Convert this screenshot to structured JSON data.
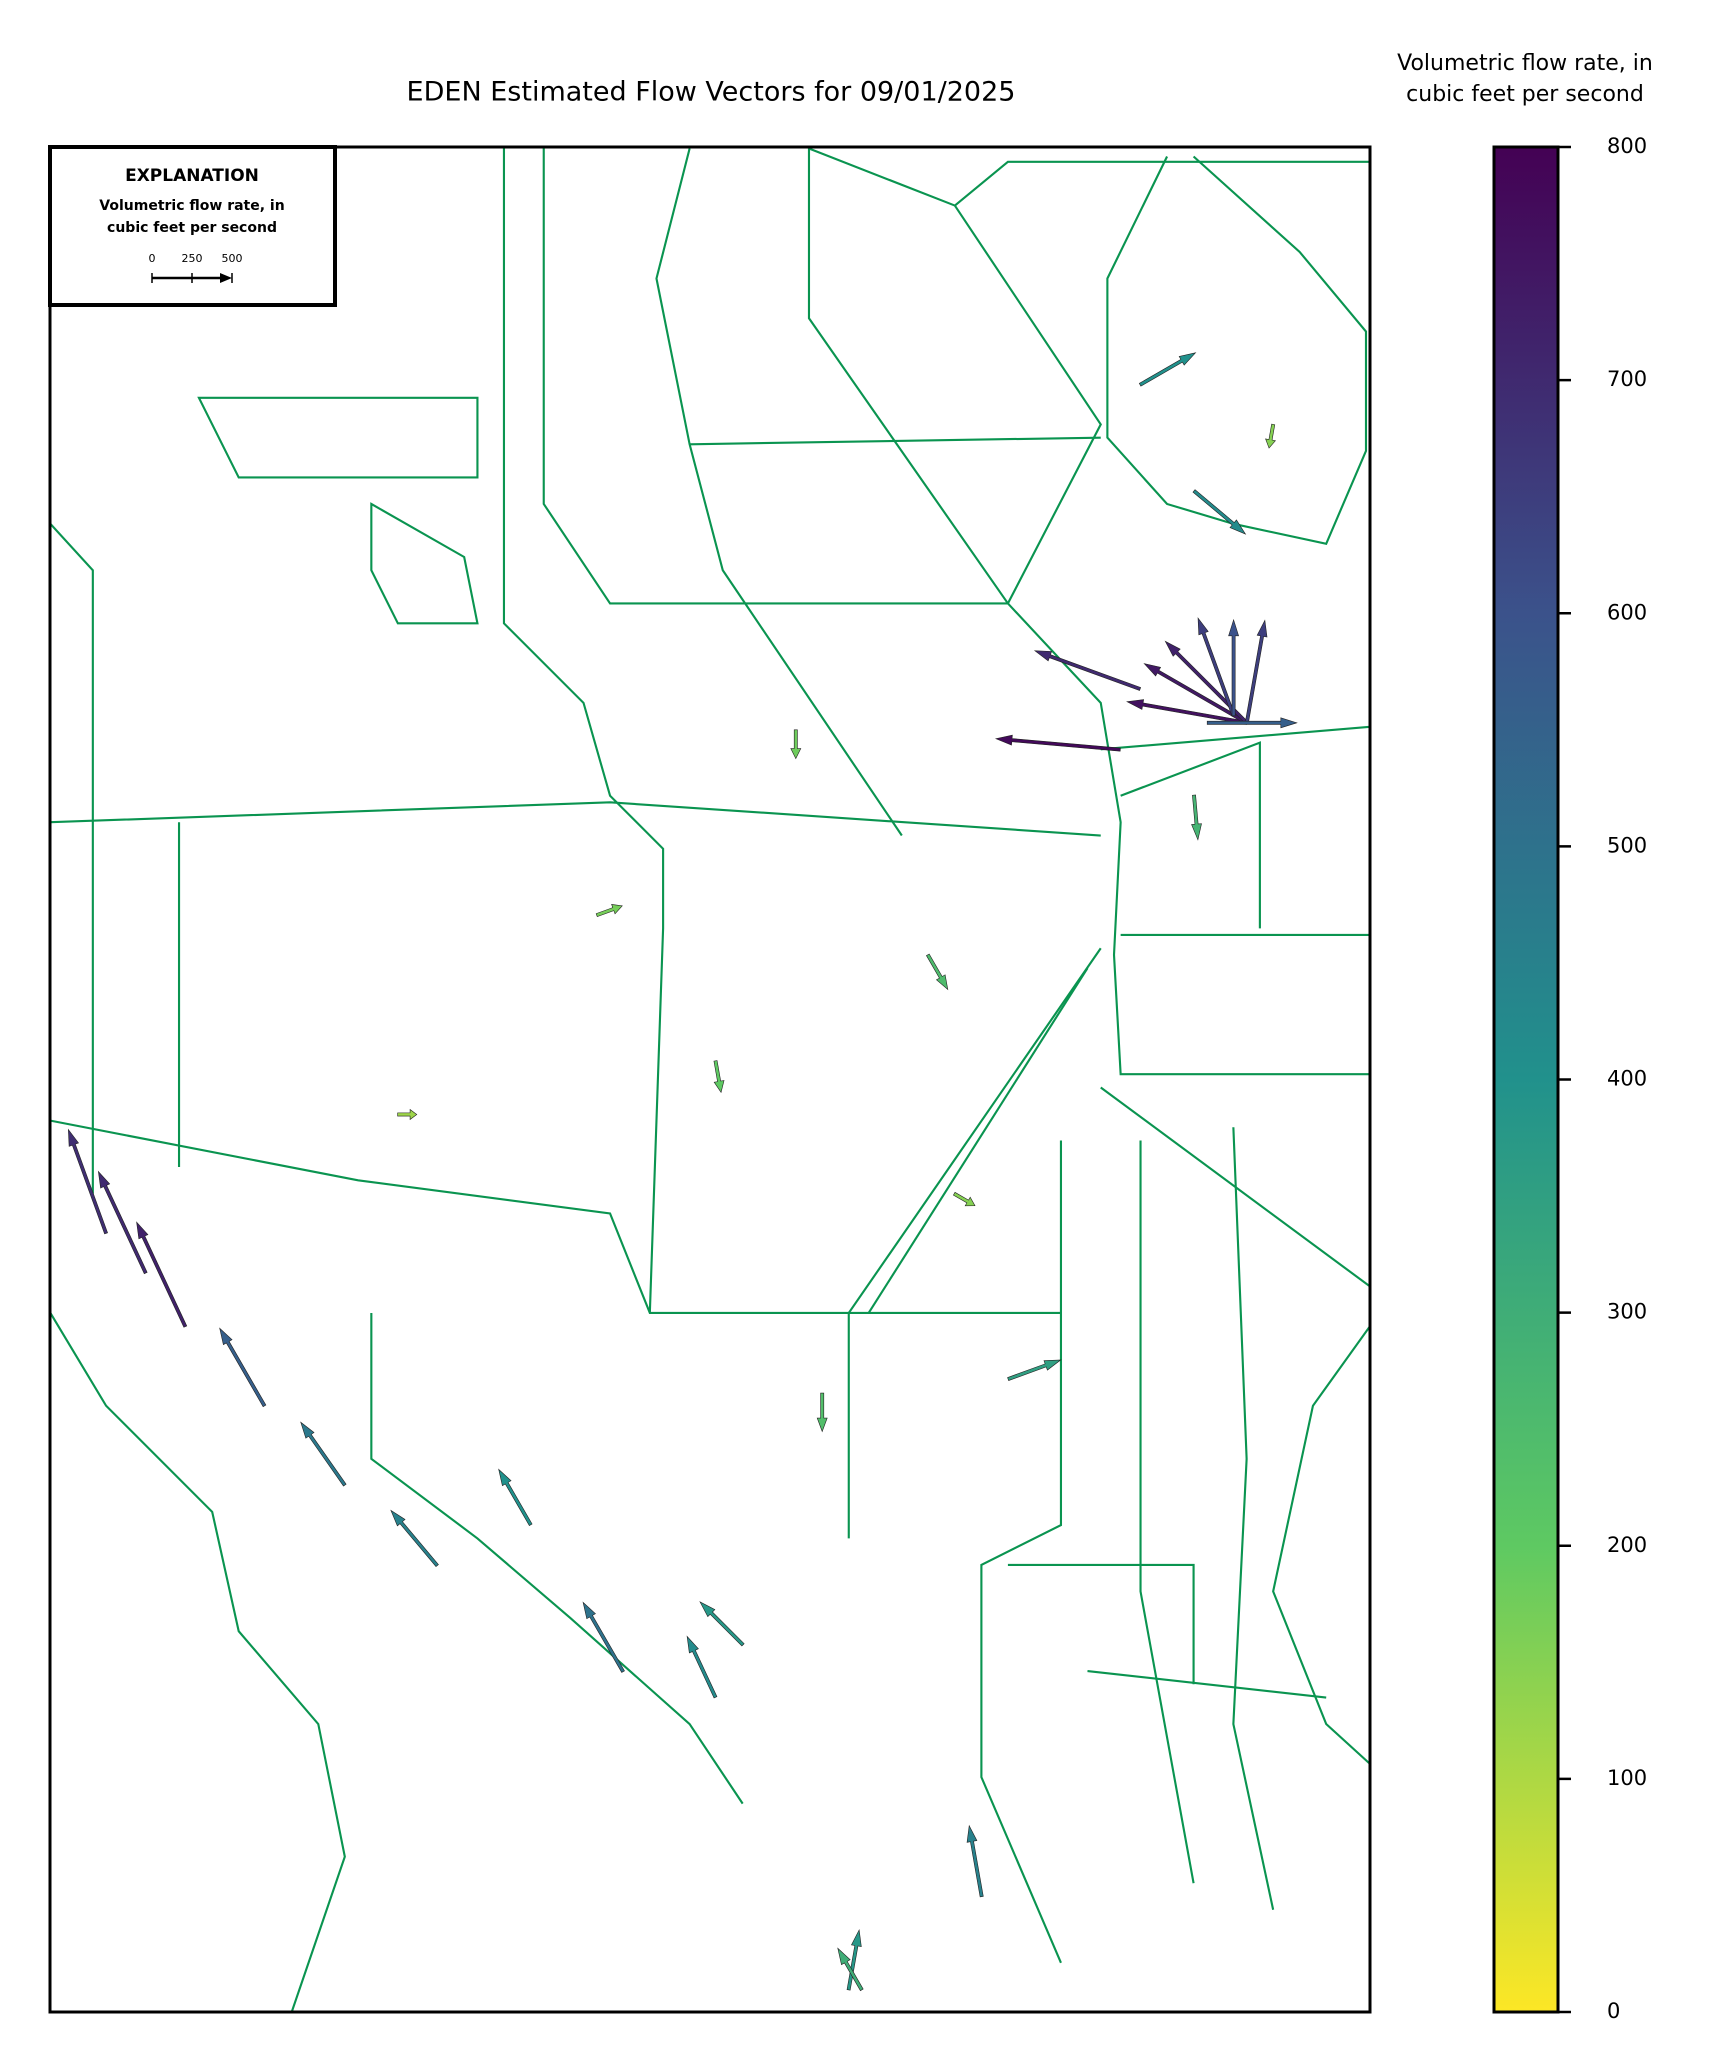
{
  "chart_data": {
    "type": "vector-map",
    "title": "EDEN Estimated Flow Vectors for 09/01/2025",
    "colorbar_label": [
      "Volumetric flow rate, in",
      "cubic feet per second"
    ],
    "clim": [
      0,
      800
    ],
    "cticks": [
      0,
      100,
      200,
      300,
      400,
      500,
      600,
      700,
      800
    ],
    "colormap": "viridis_r",
    "explanation": {
      "title": "EXPLANATION",
      "lines": [
        "Volumetric flow rate, in",
        "cubic feet per second"
      ],
      "key_ticks": [
        0,
        250,
        500
      ]
    },
    "xlim": [
      -81.35,
      -80.15
    ],
    "ylim": [
      25.15,
      26.75
    ],
    "vectors": [
      {
        "lon": -80.262,
        "lat": 26.256,
        "direction": 170,
        "rate": 760
      },
      {
        "lon": -80.262,
        "lat": 26.256,
        "direction": 150,
        "rate": 740
      },
      {
        "lon": -80.262,
        "lat": 26.256,
        "direction": 135,
        "rate": 720
      },
      {
        "lon": -80.274,
        "lat": 26.262,
        "direction": 110,
        "rate": 650
      },
      {
        "lon": -80.274,
        "lat": 26.262,
        "direction": 90,
        "rate": 600
      },
      {
        "lon": -80.262,
        "lat": 26.256,
        "direction": 80,
        "rate": 650
      },
      {
        "lon": -80.298,
        "lat": 26.256,
        "direction": 0,
        "rate": 560
      },
      {
        "lon": -80.377,
        "lat": 26.233,
        "direction": 175,
        "rate": 780
      },
      {
        "lon": -80.359,
        "lat": 26.285,
        "direction": 160,
        "rate": 700
      },
      {
        "lon": -81.227,
        "lat": 25.738,
        "direction": 115,
        "rate": 720
      },
      {
        "lon": -81.263,
        "lat": 25.784,
        "direction": 115,
        "rate": 700
      },
      {
        "lon": -81.299,
        "lat": 25.818,
        "direction": 110,
        "rate": 690
      },
      {
        "lon": -81.155,
        "lat": 25.67,
        "direction": 120,
        "rate": 560
      },
      {
        "lon": -81.082,
        "lat": 25.602,
        "direction": 125,
        "rate": 480
      },
      {
        "lon": -80.998,
        "lat": 25.533,
        "direction": 130,
        "rate": 450
      },
      {
        "lon": -80.913,
        "lat": 25.568,
        "direction": 120,
        "rate": 400
      },
      {
        "lon": -80.829,
        "lat": 25.442,
        "direction": 120,
        "rate": 500
      },
      {
        "lon": -80.745,
        "lat": 25.42,
        "direction": 115,
        "rate": 420
      },
      {
        "lon": -80.72,
        "lat": 25.465,
        "direction": 135,
        "rate": 380
      },
      {
        "lon": -80.624,
        "lat": 25.169,
        "direction": 80,
        "rate": 380
      },
      {
        "lon": -80.612,
        "lat": 25.169,
        "direction": 120,
        "rate": 300
      },
      {
        "lon": -80.503,
        "lat": 25.249,
        "direction": 100,
        "rate": 450
      },
      {
        "lon": -80.359,
        "lat": 26.546,
        "direction": 30,
        "rate": 400
      },
      {
        "lon": -80.31,
        "lat": 26.455,
        "direction": -40,
        "rate": 420
      },
      {
        "lon": -80.672,
        "lat": 26.25,
        "direction": -90,
        "rate": 180
      },
      {
        "lon": -80.745,
        "lat": 25.966,
        "direction": -80,
        "rate": 200
      },
      {
        "lon": -80.552,
        "lat": 26.057,
        "direction": -60,
        "rate": 250
      },
      {
        "lon": -80.853,
        "lat": 26.091,
        "direction": 20,
        "rate": 170
      },
      {
        "lon": -80.479,
        "lat": 25.693,
        "direction": 20,
        "rate": 350
      },
      {
        "lon": -80.648,
        "lat": 25.681,
        "direction": -90,
        "rate": 240
      },
      {
        "lon": -80.31,
        "lat": 26.194,
        "direction": -85,
        "rate": 280
      },
      {
        "lon": -80.238,
        "lat": 26.512,
        "direction": -100,
        "rate": 150
      },
      {
        "lon": -81.034,
        "lat": 25.92,
        "direction": 0,
        "rate": 120
      },
      {
        "lon": -80.528,
        "lat": 25.852,
        "direction": -30,
        "rate": 150
      }
    ]
  }
}
